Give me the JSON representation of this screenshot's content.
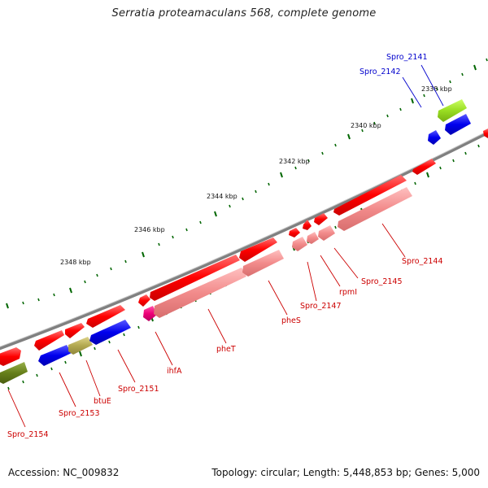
{
  "title": "Serratia proteamaculans 568, complete genome",
  "accession": "Accession: NC_009832",
  "topology": "Topology: circular; Length: 5,448,853 bp; Genes: 5,000",
  "colors": {
    "backbone": "#808080",
    "forward_cds": "#ff0000",
    "reverse_cds_light": "#f28b8b",
    "blue_gene": "#0000ee",
    "yellowgreen_gene": "#99dd22",
    "olive_gene": "#667f1a",
    "khaki_gene": "#b2a850",
    "magenta_gene": "#ee0077",
    "tick": "#006600",
    "red_label": "#cc0000",
    "blue_label": "#0000cc"
  },
  "kbp_labels": [
    "2338 kbp",
    "2340 kbp",
    "2342 kbp",
    "2344 kbp",
    "2346 kbp",
    "2348 kbp"
  ],
  "gene_labels": {
    "spro_2141": "Spro_2141",
    "spro_2142": "Spro_2142",
    "spro_2144": "Spro_2144",
    "spro_2145": "Spro_2145",
    "rpml": "rpmI",
    "spro_2147": "Spro_2147",
    "phes": "pheS",
    "phet": "pheT",
    "ihfa": "ihfA",
    "spro_2151": "Spro_2151",
    "btue": "btuE",
    "spro_2153": "Spro_2153",
    "spro_2154": "Spro_2154"
  }
}
